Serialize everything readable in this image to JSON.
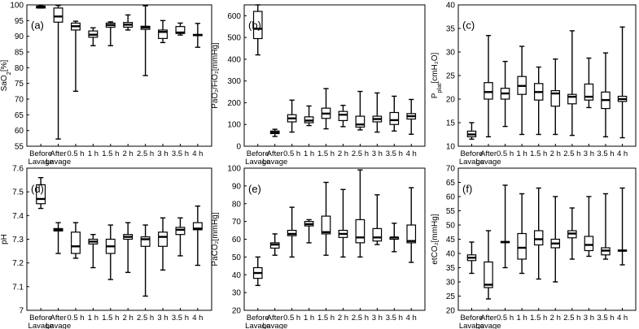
{
  "chart_data": [
    {
      "type": "box",
      "panel": "(a)",
      "ylabel_main": "SaO",
      "ylabel_sub": "2",
      "ylabel_unit": "[%]",
      "ylim": [
        55,
        100
      ],
      "yticks": [
        55,
        60,
        65,
        70,
        75,
        80,
        85,
        90,
        95,
        100
      ],
      "categories": [
        [
          "Before",
          "Lavage"
        ],
        [
          "After",
          "Lavage"
        ],
        [
          "0.5 h"
        ],
        [
          "1 h"
        ],
        [
          "1.5 h"
        ],
        [
          "2 h"
        ],
        [
          "2.5 h"
        ],
        [
          "3 h"
        ],
        [
          "3.5 h"
        ],
        [
          "4 h"
        ]
      ],
      "boxes": [
        {
          "min": 99.0,
          "q1": 99.0,
          "median": 99.3,
          "q3": 99.6,
          "max": 99.8
        },
        {
          "min": 57.3,
          "q1": 94.5,
          "median": 96.3,
          "q3": 99.0,
          "max": 99.8
        },
        {
          "min": 72.5,
          "q1": 92.0,
          "median": 93.2,
          "q3": 94.2,
          "max": 94.8
        },
        {
          "min": 87.0,
          "q1": 89.7,
          "median": 90.5,
          "q3": 91.7,
          "max": 92.7
        },
        {
          "min": 87.0,
          "q1": 92.9,
          "median": 93.6,
          "q3": 94.2,
          "max": 94.6
        },
        {
          "min": 92.0,
          "q1": 92.9,
          "median": 93.7,
          "q3": 94.4,
          "max": 96.8
        },
        {
          "min": 77.5,
          "q1": 92.2,
          "median": 92.8,
          "q3": 93.2,
          "max": 99.7
        },
        {
          "min": 88.0,
          "q1": 89.3,
          "median": 91.4,
          "q3": 92.0,
          "max": 95.0
        },
        {
          "min": 90.4,
          "q1": 90.9,
          "median": 91.2,
          "q3": 93.1,
          "max": 94.2
        },
        {
          "min": 86.5,
          "q1": 90.2,
          "median": 90.4,
          "q3": 90.6,
          "max": 94.1
        }
      ]
    },
    {
      "type": "box",
      "panel": "(b)",
      "ylabel_main": "PaO₂/FiO₂",
      "ylabel_unit": "[mmHg]",
      "ylim": [
        0,
        650
      ],
      "yticks": [
        0,
        100,
        200,
        300,
        400,
        500,
        600
      ],
      "categories": [
        [
          "Before",
          "Lavage"
        ],
        [
          "After",
          "Lavage"
        ],
        [
          "0.5 h"
        ],
        [
          "1 h"
        ],
        [
          "1.5 h"
        ],
        [
          "2 h"
        ],
        [
          "2.5 h"
        ],
        [
          "3 h"
        ],
        [
          "3.5 h"
        ],
        [
          "4 h"
        ]
      ],
      "boxes": [
        {
          "min": 420,
          "q1": 495,
          "median": 540,
          "q3": 620,
          "max": 650
        },
        {
          "min": 45,
          "q1": 58,
          "median": 63,
          "q3": 70,
          "max": 78
        },
        {
          "min": 65,
          "q1": 112,
          "median": 128,
          "q3": 145,
          "max": 212
        },
        {
          "min": 95,
          "q1": 108,
          "median": 118,
          "q3": 135,
          "max": 185
        },
        {
          "min": 80,
          "q1": 128,
          "median": 150,
          "q3": 175,
          "max": 265
        },
        {
          "min": 90,
          "q1": 118,
          "median": 145,
          "q3": 160,
          "max": 188
        },
        {
          "min": 75,
          "q1": 88,
          "median": 100,
          "q3": 138,
          "max": 252
        },
        {
          "min": 65,
          "q1": 112,
          "median": 125,
          "q3": 138,
          "max": 245
        },
        {
          "min": 70,
          "q1": 100,
          "median": 120,
          "q3": 155,
          "max": 230
        },
        {
          "min": 55,
          "q1": 125,
          "median": 138,
          "q3": 150,
          "max": 215
        }
      ]
    },
    {
      "type": "box",
      "panel": "(c)",
      "ylabel_main": "P",
      "ylabel_sub": "plat",
      "ylabel_unit": "[cmH₂O]",
      "ylim": [
        10,
        40
      ],
      "yticks": [
        10,
        15,
        20,
        25,
        30,
        35,
        40
      ],
      "categories": [
        [
          "Before",
          "Lavage"
        ],
        [
          "After",
          "Lavage"
        ],
        [
          "0.5 h"
        ],
        [
          "1 h"
        ],
        [
          "1.5 h"
        ],
        [
          "2 h"
        ],
        [
          "2.5 h"
        ],
        [
          "3 h"
        ],
        [
          "3.5 h"
        ],
        [
          "4 h"
        ]
      ],
      "boxes": [
        {
          "min": 11.5,
          "q1": 12.0,
          "median": 12.5,
          "q3": 13.2,
          "max": 15.0
        },
        {
          "min": 12.0,
          "q1": 20.0,
          "median": 21.5,
          "q3": 23.5,
          "max": 33.5
        },
        {
          "min": 14.2,
          "q1": 20.0,
          "median": 21.2,
          "q3": 22.3,
          "max": 28.0
        },
        {
          "min": 12.5,
          "q1": 21.0,
          "median": 22.8,
          "q3": 24.8,
          "max": 31.2
        },
        {
          "min": 12.5,
          "q1": 19.8,
          "median": 21.5,
          "q3": 23.3,
          "max": 26.8
        },
        {
          "min": 12.5,
          "q1": 18.5,
          "median": 21.2,
          "q3": 21.8,
          "max": 28.5
        },
        {
          "min": 12.3,
          "q1": 19.0,
          "median": 20.5,
          "q3": 21.0,
          "max": 34.5
        },
        {
          "min": 18.2,
          "q1": 19.8,
          "median": 20.5,
          "q3": 23.2,
          "max": 28.7
        },
        {
          "min": 12.0,
          "q1": 18.0,
          "median": 19.8,
          "q3": 21.5,
          "max": 29.8
        },
        {
          "min": 11.8,
          "q1": 19.5,
          "median": 20.0,
          "q3": 20.6,
          "max": 35.3
        }
      ]
    },
    {
      "type": "box",
      "panel": "(d)",
      "ylabel_main": "pH",
      "ylim": [
        7.0,
        7.6
      ],
      "yticks": [
        7,
        7.1,
        7.2,
        7.3,
        7.4,
        7.5,
        7.6
      ],
      "yticklabels": [
        "7",
        "7.1",
        "7.2",
        "7.3",
        "7.4",
        "7.5",
        "7.6"
      ],
      "categories": [
        [
          "Before",
          "Lavage"
        ],
        [
          "After",
          "Lavage"
        ],
        [
          "0.5 h"
        ],
        [
          "1 h"
        ],
        [
          "1.5 h"
        ],
        [
          "2 h"
        ],
        [
          "2.5 h"
        ],
        [
          "3 h"
        ],
        [
          "3.5 h"
        ],
        [
          "4 h"
        ]
      ],
      "boxes": [
        {
          "min": 7.43,
          "q1": 7.45,
          "median": 7.47,
          "q3": 7.53,
          "max": 7.56
        },
        {
          "min": 7.24,
          "q1": 7.335,
          "median": 7.34,
          "q3": 7.345,
          "max": 7.37
        },
        {
          "min": 7.22,
          "q1": 7.24,
          "median": 7.27,
          "q3": 7.33,
          "max": 7.37
        },
        {
          "min": 7.18,
          "q1": 7.28,
          "median": 7.29,
          "q3": 7.3,
          "max": 7.32
        },
        {
          "min": 7.13,
          "q1": 7.24,
          "median": 7.27,
          "q3": 7.3,
          "max": 7.36
        },
        {
          "min": 7.16,
          "q1": 7.3,
          "median": 7.31,
          "q3": 7.32,
          "max": 7.37
        },
        {
          "min": 7.06,
          "q1": 7.27,
          "median": 7.3,
          "q3": 7.31,
          "max": 7.36
        },
        {
          "min": 7.17,
          "q1": 7.27,
          "median": 7.31,
          "q3": 7.33,
          "max": 7.39
        },
        {
          "min": 7.23,
          "q1": 7.32,
          "median": 7.34,
          "q3": 7.35,
          "max": 7.39
        },
        {
          "min": 7.19,
          "q1": 7.34,
          "median": 7.345,
          "q3": 7.37,
          "max": 7.44
        }
      ]
    },
    {
      "type": "box",
      "panel": "(e)",
      "ylabel_main": "PaCO₂",
      "ylabel_unit": "[mmHg]",
      "ylim": [
        20,
        100
      ],
      "yticks": [
        20,
        30,
        40,
        50,
        60,
        70,
        80,
        90,
        100
      ],
      "categories": [
        [
          "Before",
          "Lavage"
        ],
        [
          "After",
          "Lavage"
        ],
        [
          "0.5 h"
        ],
        [
          "1 h"
        ],
        [
          "1.5 h"
        ],
        [
          "2 h"
        ],
        [
          "2.5 h"
        ],
        [
          "3 h"
        ],
        [
          "3.5 h"
        ],
        [
          "4 h"
        ]
      ],
      "boxes": [
        {
          "min": 34,
          "q1": 38,
          "median": 41,
          "q3": 44,
          "max": 50
        },
        {
          "min": 51,
          "q1": 55,
          "median": 57,
          "q3": 58,
          "max": 63
        },
        {
          "min": 50,
          "q1": 62,
          "median": 63,
          "q3": 65,
          "max": 78
        },
        {
          "min": 58,
          "q1": 67.5,
          "median": 68.5,
          "q3": 70,
          "max": 71
        },
        {
          "min": 51,
          "q1": 63,
          "median": 64,
          "q3": 73,
          "max": 92
        },
        {
          "min": 50,
          "q1": 61,
          "median": 63,
          "q3": 65,
          "max": 88
        },
        {
          "min": 50,
          "q1": 58,
          "median": 61,
          "q3": 71,
          "max": 99
        },
        {
          "min": 57,
          "q1": 59,
          "median": 61,
          "q3": 66,
          "max": 85
        },
        {
          "min": 53,
          "q1": 60,
          "median": 61,
          "q3": 61,
          "max": 69
        },
        {
          "min": 47,
          "q1": 58,
          "median": 59,
          "q3": 68,
          "max": 89
        }
      ]
    },
    {
      "type": "box",
      "panel": "(f)",
      "ylabel_main": "etCO₂",
      "ylabel_unit": "[mmHg]",
      "ylim": [
        20,
        70
      ],
      "yticks": [
        20,
        25,
        30,
        35,
        40,
        45,
        50,
        55,
        60,
        65,
        70
      ],
      "categories": [
        [
          "Before",
          "Lavage"
        ],
        [
          "After",
          "Lavage"
        ],
        [
          "0.5 h"
        ],
        [
          "1 h"
        ],
        [
          "1.5 h"
        ],
        [
          "2 h"
        ],
        [
          "2.5 h"
        ],
        [
          "3 h"
        ],
        [
          "3.5 h"
        ],
        [
          "4 h"
        ]
      ],
      "boxes": [
        {
          "min": 33,
          "q1": 37.5,
          "median": 38.5,
          "q3": 39.5,
          "max": 44
        },
        {
          "min": 24,
          "q1": 28,
          "median": 29,
          "q3": 37,
          "max": 48
        },
        {
          "min": 35,
          "q1": 43.8,
          "median": 44,
          "q3": 44.2,
          "max": 64
        },
        {
          "min": 33,
          "q1": 38,
          "median": 42,
          "q3": 47,
          "max": 61
        },
        {
          "min": 31,
          "q1": 43,
          "median": 45,
          "q3": 48,
          "max": 63
        },
        {
          "min": 30,
          "q1": 42,
          "median": 43.5,
          "q3": 45,
          "max": 60
        },
        {
          "min": 38,
          "q1": 45.5,
          "median": 47,
          "q3": 48,
          "max": 56
        },
        {
          "min": 39,
          "q1": 41,
          "median": 43,
          "q3": 46,
          "max": 60
        },
        {
          "min": 38,
          "q1": 39.5,
          "median": 41,
          "q3": 42,
          "max": 61
        },
        {
          "min": 36,
          "q1": 40.8,
          "median": 41,
          "q3": 41.2,
          "max": 63
        }
      ]
    }
  ]
}
